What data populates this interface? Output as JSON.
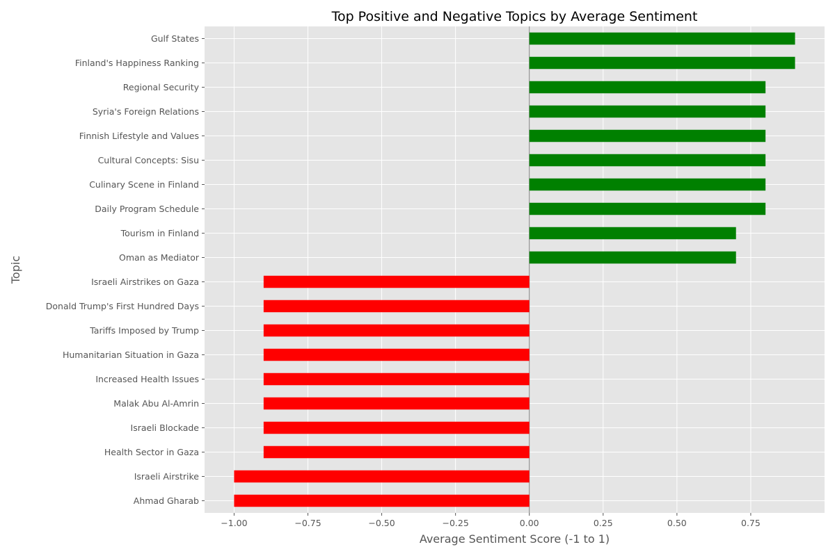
{
  "chart_data": {
    "type": "bar",
    "orientation": "horizontal",
    "title": "Top Positive and Negative Topics by Average Sentiment",
    "xlabel": "Average Sentiment Score (-1 to 1)",
    "ylabel": "Topic",
    "xlim": [
      -1.1,
      1.0
    ],
    "xticks": [
      -1.0,
      -0.75,
      -0.5,
      -0.25,
      0.0,
      0.25,
      0.5,
      0.75
    ],
    "xtick_labels": [
      "−1.00",
      "−0.75",
      "−0.50",
      "−0.25",
      "0.00",
      "0.25",
      "0.50",
      "0.75"
    ],
    "grid": true,
    "style": "ggplot",
    "colors": {
      "positive": "#008000",
      "negative": "#ff0000",
      "background": "#e5e5e5",
      "grid": "#ffffff",
      "zero_line": "#808080"
    },
    "categories": [
      "Gulf States",
      "Finland's Happiness Ranking",
      "Regional Security",
      "Syria's Foreign Relations",
      "Finnish Lifestyle and Values",
      "Cultural Concepts: Sisu",
      "Culinary Scene in Finland",
      "Daily Program Schedule",
      "Tourism in Finland",
      "Oman as Mediator",
      "Israeli Airstrikes on Gaza",
      "Donald Trump's First Hundred Days",
      "Tariffs Imposed by Trump",
      "Humanitarian Situation in Gaza",
      "Increased Health Issues",
      "Malak Abu Al-Amrin",
      "Israeli Blockade",
      "Health Sector in Gaza",
      "Israeli Airstrike",
      "Ahmad Gharab"
    ],
    "values": [
      0.9,
      0.9,
      0.8,
      0.8,
      0.8,
      0.8,
      0.8,
      0.8,
      0.7,
      0.7,
      -0.9,
      -0.9,
      -0.9,
      -0.9,
      -0.9,
      -0.9,
      -0.9,
      -0.9,
      -1.0,
      -1.0
    ]
  }
}
